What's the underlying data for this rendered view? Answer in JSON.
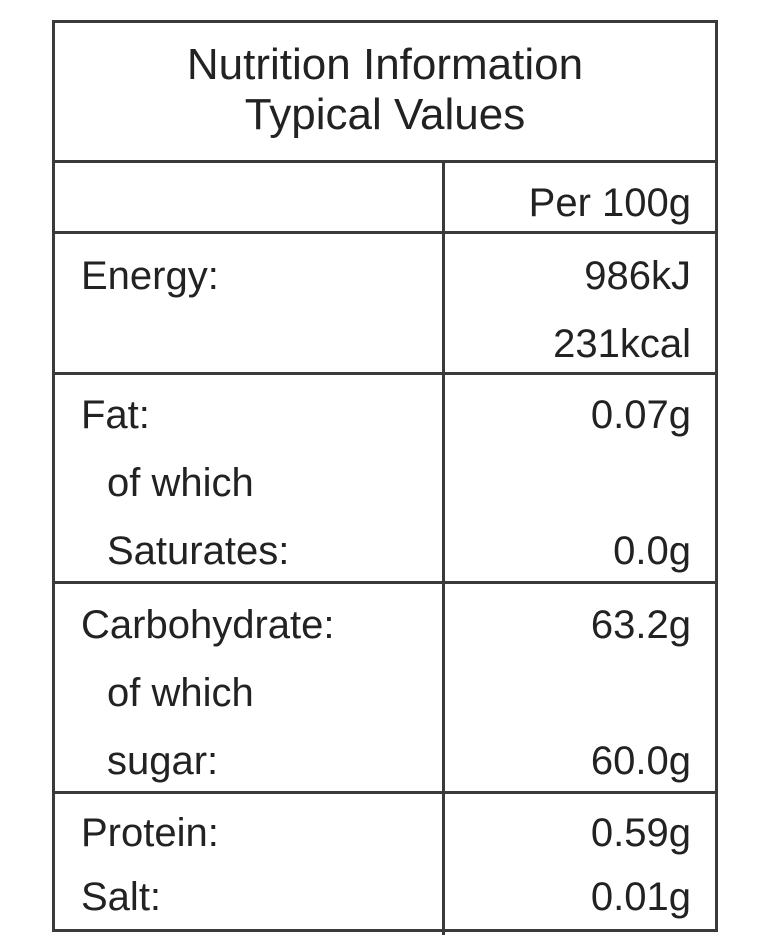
{
  "title": {
    "line1": "Nutrition Information",
    "line2": "Typical Values"
  },
  "column_header": "Per 100g",
  "rows": {
    "energy": {
      "label": "Energy:",
      "value_kj": "986kJ",
      "value_kcal": "231kcal"
    },
    "fat": {
      "label": "Fat:",
      "value": "0.07g",
      "sub_prefix": "of which",
      "sub_label": "Saturates:",
      "sub_value": "0.0g"
    },
    "carbohydrate": {
      "label": "Carbohydrate:",
      "value": "63.2g",
      "sub_prefix": "of which",
      "sub_label": "sugar:",
      "sub_value": "60.0g"
    },
    "protein": {
      "label": "Protein:",
      "value": "0.59g"
    },
    "salt": {
      "label": "Salt:",
      "value": "0.01g"
    }
  }
}
